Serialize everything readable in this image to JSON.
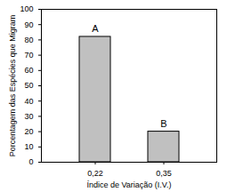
{
  "chart_data": {
    "type": "bar",
    "x_label": "Índice de Variação (I.V.)",
    "y_label": "Porcentagem das Espécies que Migram",
    "categories": [
      "0,22",
      "0,35"
    ],
    "values": [
      82,
      20
    ],
    "annotations": [
      "A",
      "B"
    ],
    "color": "#c0c0c0",
    "ylim": [
      0,
      100
    ],
    "yticks": [
      0,
      10,
      20,
      30,
      40,
      50,
      60,
      70,
      80,
      90,
      100
    ],
    "grid": false
  }
}
